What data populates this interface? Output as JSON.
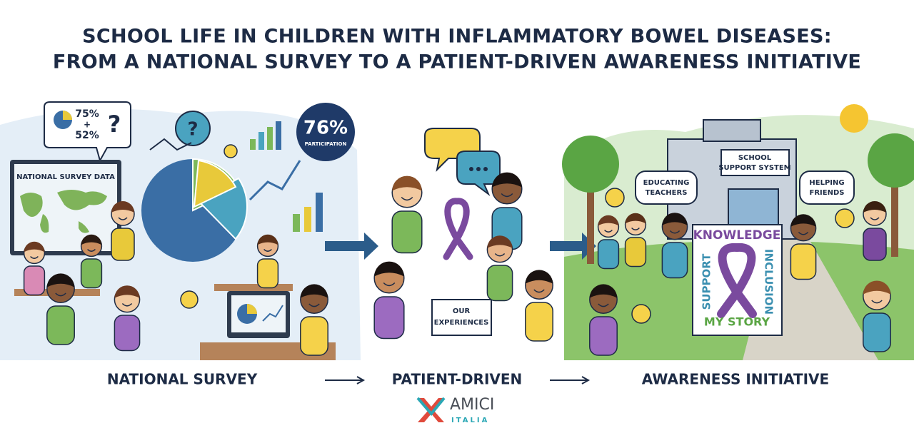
{
  "header": {
    "title_lines": [
      "SCHOOL LIFE IN CHILDREN WITH INFLAMMATORY BOWEL DISEASES:",
      "FROM A NATIONAL SURVEY TO A PATIENT-DRIVEN AWARENESS INITIATIVE"
    ]
  },
  "panels": [
    {
      "caption": "NATIONAL SURVEY",
      "callout": [
        "75%",
        "+",
        "52%"
      ],
      "badge": {
        "value": "76%",
        "label": "PARTICIPATION"
      },
      "screen_title": "NATIONAL SURVEY DATA"
    },
    {
      "caption": "PATIENT-DRIVEN",
      "sign": [
        "OUR",
        "EXPERIENCES"
      ]
    },
    {
      "caption": "AWARENESS INITIATIVE",
      "building_sign": [
        "SCHOOL",
        "SUPPORT SYSTEM"
      ],
      "bubbles": [
        [
          "EDUCATING",
          "TEACHERS"
        ],
        [
          "HELPING",
          "FRIENDS"
        ]
      ],
      "poster": {
        "top": "KNOWLEDGE",
        "left": "SUPPORT",
        "right": "INCLUSION",
        "bottom": "MY STORY"
      }
    }
  ],
  "logo": {
    "name": "AMICI",
    "country": "ITALIA"
  }
}
